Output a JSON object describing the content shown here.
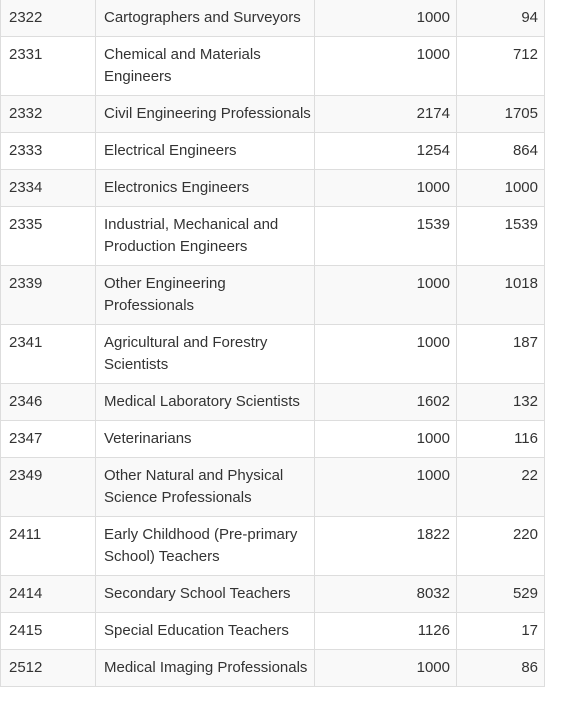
{
  "table": {
    "rows": [
      [
        "2322",
        "Cartographers and Surveyors",
        1000,
        94
      ],
      [
        "2331",
        "Chemical and Materials Engineers",
        1000,
        712
      ],
      [
        "2332",
        "Civil Engineering Professionals",
        2174,
        1705
      ],
      [
        "2333",
        "Electrical Engineers",
        1254,
        864
      ],
      [
        "2334",
        "Electronics Engineers",
        1000,
        1000
      ],
      [
        "2335",
        "Industrial, Mechanical and Production Engineers",
        1539,
        1539
      ],
      [
        "2339",
        "Other Engineering Professionals",
        1000,
        1018
      ],
      [
        "2341",
        "Agricultural and Forestry Scientists",
        1000,
        187
      ],
      [
        "2346",
        "Medical Laboratory Scientists",
        1602,
        132
      ],
      [
        "2347",
        "Veterinarians",
        1000,
        116
      ],
      [
        "2349",
        "Other Natural and Physical Science Professionals",
        1000,
        22
      ],
      [
        "2411",
        "Early Childhood (Pre-primary School) Teachers",
        1822,
        220
      ],
      [
        "2414",
        "Secondary School Teachers",
        8032,
        529
      ],
      [
        "2415",
        "Special Education Teachers",
        1126,
        17
      ],
      [
        "2512",
        "Medical Imaging Professionals",
        1000,
        86
      ]
    ]
  }
}
